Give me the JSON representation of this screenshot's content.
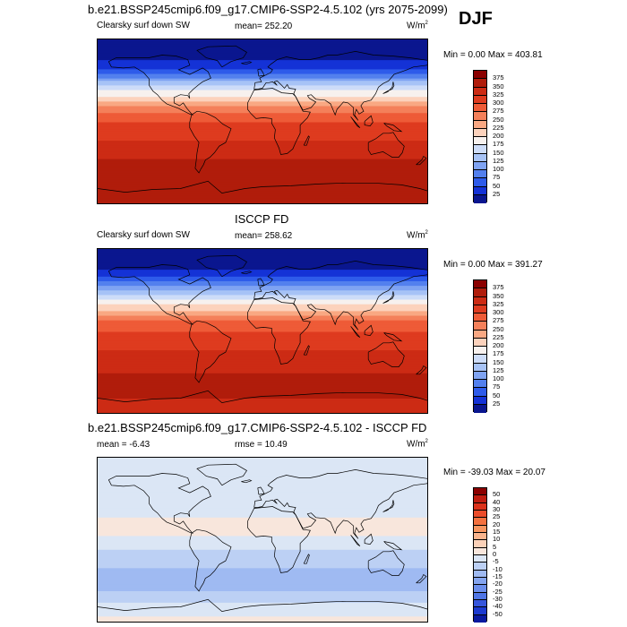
{
  "season": "DJF",
  "chart_data": [
    {
      "type": "heatmap",
      "title": "b.e21.BSSP245cmip6.f09_g17.CMIP6-SSP2-4.5.102 (yrs 2075-2099)",
      "left_label": "Clearsky surf down SW",
      "center_label": "mean= 252.20",
      "units_base": "W/m",
      "units_exp": "2",
      "stats": "Min =   0.00 Max = 403.81",
      "colorbar": {
        "levels": [
          "375",
          "350",
          "325",
          "300",
          "275",
          "250",
          "225",
          "200",
          "175",
          "150",
          "125",
          "100",
          "75",
          "50",
          "25"
        ],
        "colors": [
          "#8b0000",
          "#b01c0b",
          "#cc2b14",
          "#de3b1f",
          "#ee5b37",
          "#f4805a",
          "#f9a883",
          "#fcd2bc",
          "#f7f1ee",
          "#cddcf8",
          "#a7c3f6",
          "#7fa3f2",
          "#5380ee",
          "#2e5bea",
          "#1432d6",
          "#0a168f"
        ]
      },
      "field": {
        "lat_profile": [
          [
            -90,
            350
          ],
          [
            -65,
            360
          ],
          [
            -45,
            355
          ],
          [
            -30,
            335
          ],
          [
            -15,
            320
          ],
          [
            0,
            300
          ],
          [
            10,
            275
          ],
          [
            20,
            235
          ],
          [
            30,
            190
          ],
          [
            40,
            150
          ],
          [
            50,
            90
          ],
          [
            60,
            40
          ],
          [
            75,
            5
          ],
          [
            90,
            0
          ]
        ]
      }
    },
    {
      "type": "heatmap",
      "title": "ISCCP FD",
      "left_label": "Clearsky surf down SW",
      "center_label": "mean= 258.62",
      "units_base": "W/m",
      "units_exp": "2",
      "stats": "Min =   0.00 Max = 391.27",
      "colorbar": {
        "levels": [
          "375",
          "350",
          "325",
          "300",
          "275",
          "250",
          "225",
          "200",
          "175",
          "150",
          "125",
          "100",
          "75",
          "50",
          "25"
        ],
        "colors": [
          "#8b0000",
          "#b01c0b",
          "#cc2b14",
          "#de3b1f",
          "#ee5b37",
          "#f4805a",
          "#f9a883",
          "#fcd2bc",
          "#f7f1ee",
          "#cddcf8",
          "#a7c3f6",
          "#7fa3f2",
          "#5380ee",
          "#2e5bea",
          "#1432d6",
          "#0a168f"
        ]
      },
      "field": {
        "lat_profile": [
          [
            -90,
            340
          ],
          [
            -65,
            355
          ],
          [
            -45,
            350
          ],
          [
            -30,
            335
          ],
          [
            -15,
            320
          ],
          [
            0,
            300
          ],
          [
            10,
            280
          ],
          [
            20,
            240
          ],
          [
            30,
            195
          ],
          [
            40,
            155
          ],
          [
            50,
            95
          ],
          [
            60,
            45
          ],
          [
            75,
            5
          ],
          [
            90,
            0
          ]
        ]
      }
    },
    {
      "type": "heatmap",
      "title": "b.e21.BSSP245cmip6.f09_g17.CMIP6-SSP2-4.5.102 - ISCCP FD",
      "left_label": "mean =  -6.43",
      "center_label": "rmse =  10.49",
      "units_base": "W/m",
      "units_exp": "2",
      "stats": "Min = -39.03 Max =  20.07",
      "colorbar": {
        "levels": [
          "50",
          "40",
          "30",
          "25",
          "20",
          "15",
          "10",
          "5",
          "0",
          "-5",
          "-10",
          "-15",
          "-20",
          "-25",
          "-30",
          "-40",
          "-50"
        ],
        "colors": [
          "#8b0000",
          "#c01d10",
          "#dc321b",
          "#eb4c2a",
          "#f4713f",
          "#f79560",
          "#f9b48d",
          "#fbd1b8",
          "#f8e6dc",
          "#dbe6f5",
          "#bcd0f4",
          "#9fbaf2",
          "#84a4ef",
          "#6b8eec",
          "#5076e6",
          "#3656dc",
          "#1c3ad0",
          "#0a1aa0"
        ]
      },
      "field": {
        "lat_profile": [
          [
            -90,
            3
          ],
          [
            -65,
            -6
          ],
          [
            -50,
            -12
          ],
          [
            -40,
            -15
          ],
          [
            -30,
            -10
          ],
          [
            -20,
            -7
          ],
          [
            -10,
            -5
          ],
          [
            0,
            -3
          ],
          [
            10,
            2
          ],
          [
            20,
            1
          ],
          [
            35,
            -2
          ],
          [
            50,
            -2
          ],
          [
            70,
            -1
          ],
          [
            90,
            0
          ]
        ]
      }
    }
  ]
}
